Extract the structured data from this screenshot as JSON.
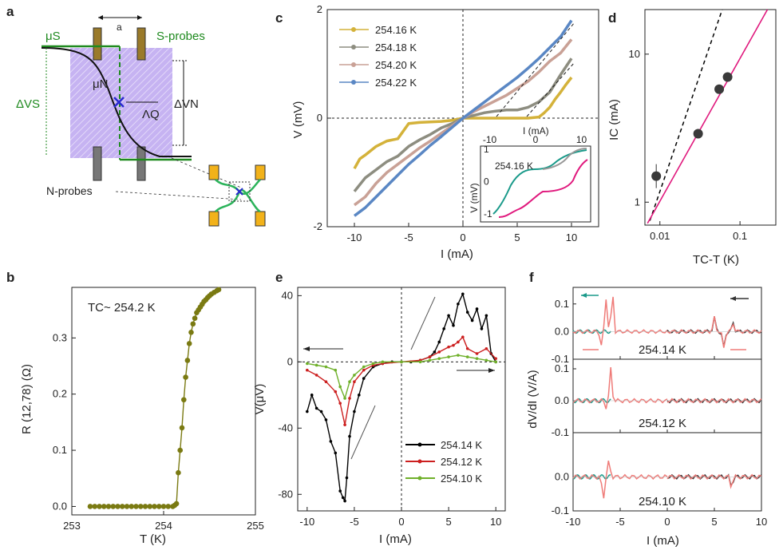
{
  "panels": {
    "a": {
      "label": "a",
      "a_label": "a",
      "s_probes": "S-probes",
      "n_probes": "N-probes",
      "mu_s": "μS",
      "mu_n": "μN",
      "dvs": "ΔVS",
      "dvn": "ΔVN",
      "lambda": "ΛQ",
      "colors": {
        "stripe": "#a98be8",
        "green": "#1f8a1f",
        "probe": "#9a7a2a",
        "nprobe": "#777777",
        "orange": "#f2b21a",
        "cross": "#2a2ad0"
      }
    },
    "b": {
      "label": "b",
      "annotation": "TC~ 254.2 K"
    },
    "c": {
      "label": "c"
    },
    "d": {
      "label": "d"
    },
    "e": {
      "label": "e"
    },
    "f": {
      "label": "f"
    }
  },
  "chart_data": [
    {
      "id": "b",
      "type": "line",
      "title": "",
      "xlabel": "T (K)",
      "ylabel": "R (12,78) (Ω)",
      "xlim": [
        253,
        255
      ],
      "ylim": [
        -0.015,
        0.39
      ],
      "xticks": [
        253,
        254,
        255
      ],
      "yticks": [
        0.0,
        0.1,
        0.2,
        0.3
      ],
      "xtick_labels": [
        "253",
        "254",
        "255"
      ],
      "ytick_labels": [
        "0.0",
        "0.1",
        "0.2",
        "0.3"
      ],
      "color": "#7a7a12",
      "x": [
        253.2,
        253.25,
        253.3,
        253.35,
        253.4,
        253.45,
        253.5,
        253.55,
        253.6,
        253.65,
        253.7,
        253.75,
        253.8,
        253.85,
        253.9,
        253.95,
        254.0,
        254.05,
        254.1,
        254.12,
        254.14,
        254.16,
        254.18,
        254.2,
        254.22,
        254.24,
        254.26,
        254.28,
        254.3,
        254.32,
        254.34,
        254.36,
        254.38,
        254.4,
        254.42,
        254.44,
        254.46,
        254.48,
        254.5,
        254.52,
        254.55,
        254.58,
        254.6
      ],
      "y": [
        0,
        0,
        0,
        0,
        0,
        0,
        0,
        0,
        0,
        0,
        0,
        0,
        0,
        0,
        0,
        0,
        0,
        0,
        0,
        0.002,
        0.005,
        0.06,
        0.1,
        0.14,
        0.19,
        0.23,
        0.26,
        0.29,
        0.31,
        0.325,
        0.335,
        0.345,
        0.35,
        0.355,
        0.36,
        0.365,
        0.368,
        0.372,
        0.375,
        0.378,
        0.381,
        0.384,
        0.386
      ]
    },
    {
      "id": "c",
      "type": "line",
      "xlabel": "I (mA)",
      "ylabel": "V (mV)",
      "xlim": [
        -12.5,
        12.5
      ],
      "ylim": [
        -2,
        2
      ],
      "xticks": [
        -10,
        -5,
        0,
        5,
        10
      ],
      "yticks": [
        -2,
        0,
        2
      ],
      "xtick_labels": [
        "-10",
        "-5",
        "0",
        "5",
        "10"
      ],
      "ytick_labels": [
        "-2",
        "0",
        "2"
      ],
      "series": [
        {
          "name": "254.16 K",
          "color": "#d4b23a",
          "x": [
            -10,
            -9.5,
            -9,
            -8,
            -7,
            -6,
            -5,
            -4,
            -3,
            -2,
            -1,
            0,
            1,
            2,
            3,
            4,
            5,
            6,
            7,
            7.5,
            8,
            8.5,
            9,
            9.5,
            10
          ],
          "y": [
            -0.93,
            -0.75,
            -0.68,
            -0.52,
            -0.42,
            -0.38,
            -0.1,
            -0.08,
            -0.07,
            -0.06,
            -0.04,
            0,
            0,
            0,
            0,
            0,
            0,
            0,
            0.02,
            0.1,
            0.2,
            0.35,
            0.48,
            0.62,
            0.75
          ]
        },
        {
          "name": "254.18 K",
          "color": "#8d8d80",
          "x": [
            -10,
            -9,
            -8,
            -7,
            -6,
            -5,
            -4,
            -3,
            -2,
            -1,
            0,
            1,
            2,
            3,
            4,
            5,
            6,
            7,
            8,
            9,
            9.5,
            10
          ],
          "y": [
            -1.35,
            -1.1,
            -0.95,
            -0.8,
            -0.7,
            -0.52,
            -0.4,
            -0.3,
            -0.18,
            -0.1,
            0,
            0.05,
            0.1,
            0.13,
            0.15,
            0.15,
            0.2,
            0.3,
            0.48,
            0.8,
            0.95,
            1.1
          ]
        },
        {
          "name": "254.20 K",
          "color": "#c9a196",
          "x": [
            -10,
            -9,
            -8,
            -7,
            -6,
            -5,
            -4,
            -3,
            -2,
            -1,
            0,
            1,
            2,
            3,
            4,
            5,
            6,
            7,
            8,
            9,
            10
          ],
          "y": [
            -1.6,
            -1.45,
            -1.2,
            -1.0,
            -0.85,
            -0.7,
            -0.55,
            -0.42,
            -0.28,
            -0.14,
            0,
            0.12,
            0.22,
            0.32,
            0.42,
            0.55,
            0.68,
            0.85,
            1.05,
            1.2,
            1.45
          ]
        },
        {
          "name": "254.22 K",
          "color": "#5a87c4",
          "x": [
            -10,
            -9,
            -8,
            -7,
            -6,
            -5,
            -4,
            -3,
            -2,
            -1,
            0,
            1,
            2,
            3,
            4,
            5,
            6,
            7,
            8,
            9,
            10
          ],
          "y": [
            -1.8,
            -1.65,
            -1.45,
            -1.25,
            -1.05,
            -0.85,
            -0.68,
            -0.5,
            -0.34,
            -0.17,
            0,
            0.15,
            0.3,
            0.45,
            0.6,
            0.75,
            0.92,
            1.1,
            1.3,
            1.5,
            1.8
          ]
        }
      ],
      "inset": {
        "title": "254.16 K",
        "xlabel": "I (mA)",
        "ylabel": "V (mV)",
        "xlim": [
          -12,
          12
        ],
        "ylim": [
          -1.25,
          1.1
        ],
        "xticks": [
          -10,
          0,
          10
        ],
        "yticks": [
          -1,
          0,
          1
        ],
        "xtick_labels": [
          "-10",
          "0",
          "10"
        ],
        "ytick_labels": [
          "-1",
          "0",
          "1"
        ]
      }
    },
    {
      "id": "d",
      "type": "scatter",
      "xlabel": "TC-T (K)",
      "ylabel": "IC (mA)",
      "xscale": "log",
      "yscale": "log",
      "xlim": [
        0.0065,
        0.28
      ],
      "ylim": [
        0.7,
        20
      ],
      "xticks": [
        0.01,
        0.1
      ],
      "yticks": [
        1,
        10
      ],
      "xtick_labels": [
        "0.01",
        "0.1"
      ],
      "ytick_labels": [
        "1",
        "10"
      ],
      "points": {
        "x": [
          0.009,
          0.03,
          0.055,
          0.07
        ],
        "y": [
          1.5,
          2.9,
          5.8,
          7.0
        ]
      },
      "fit_line": {
        "color": "#e0197d",
        "x": [
          0.007,
          0.22
        ],
        "y": [
          0.72,
          20
        ]
      },
      "dashed_line": {
        "color": "#000000",
        "x": [
          0.0075,
          0.06
        ],
        "y": [
          0.75,
          20
        ]
      }
    },
    {
      "id": "e",
      "type": "line",
      "xlabel": "I (mA)",
      "ylabel": "V(μV)",
      "xlim": [
        -11,
        11
      ],
      "ylim": [
        -90,
        45
      ],
      "xticks": [
        -10,
        -5,
        0,
        5,
        10
      ],
      "yticks": [
        -80,
        -40,
        0,
        40
      ],
      "xtick_labels": [
        "-10",
        "-5",
        "0",
        "5",
        "10"
      ],
      "ytick_labels": [
        "-80",
        "-40",
        "0",
        "40"
      ],
      "series": [
        {
          "name": "254.14 K",
          "color": "#000000",
          "x": [
            -10,
            -9.5,
            -9,
            -8.5,
            -8,
            -7.5,
            -7,
            -6.5,
            -6.2,
            -6,
            -5.8,
            -5.5,
            -5,
            -4.5,
            -4,
            -3,
            -2,
            -1,
            0,
            1,
            2,
            3,
            3.5,
            4,
            4.5,
            5,
            5.5,
            6,
            6.5,
            7,
            7.5,
            8,
            8.5,
            9,
            9.5,
            10
          ],
          "y": [
            -30,
            -20,
            -28,
            -30,
            -35,
            -48,
            -55,
            -78,
            -82,
            -84,
            -70,
            -45,
            -30,
            -20,
            -10,
            -3,
            -1,
            0,
            0,
            0,
            1,
            3,
            6,
            12,
            20,
            28,
            22,
            35,
            41,
            30,
            25,
            32,
            20,
            28,
            5,
            0
          ]
        },
        {
          "name": "254.12 K",
          "color": "#cc1f1f",
          "x": [
            -10,
            -9,
            -8,
            -7,
            -6.5,
            -6,
            -5.5,
            -5,
            -4,
            -3,
            -2,
            0,
            2,
            3,
            4,
            5,
            5.5,
            6,
            6.5,
            7,
            8,
            9,
            10
          ],
          "y": [
            -5,
            -8,
            -12,
            -18,
            -25,
            -38,
            -22,
            -12,
            -5,
            -2,
            -1,
            0,
            1,
            3,
            6,
            9,
            10,
            12,
            15,
            8,
            5,
            8,
            2
          ]
        },
        {
          "name": "254.10 K",
          "color": "#6fb02a",
          "x": [
            -10,
            -9,
            -8,
            -7,
            -6.5,
            -6,
            -5.5,
            -5,
            -4,
            -3,
            -2,
            0,
            2,
            3,
            4,
            5,
            6,
            7,
            8,
            9,
            10
          ],
          "y": [
            -1,
            -2,
            -3,
            -5,
            -15,
            -22,
            -12,
            -8,
            -3,
            -1,
            0,
            0,
            0,
            1,
            2,
            3,
            4,
            3,
            2,
            1,
            0
          ]
        }
      ]
    },
    {
      "id": "f",
      "type": "line",
      "xlabel": "I (mA)",
      "ylabel": "dV/dI (V/A)",
      "xlim": [
        -10,
        10
      ],
      "xticks": [
        -10,
        -5,
        0,
        5,
        10
      ],
      "xtick_labels": [
        "-10",
        "-5",
        "0",
        "5",
        "10"
      ],
      "subpanels": [
        {
          "label": "254.14 K",
          "ylim": [
            -0.1,
            0.16
          ],
          "yticks": [
            0.1,
            0.0,
            -0.1
          ],
          "ytick_labels": [
            "0.1",
            "0.0",
            "-0.1"
          ]
        },
        {
          "label": "254.12 K",
          "ylim": [
            -0.1,
            0.13
          ],
          "yticks": [
            0.1,
            0.0,
            -0.1
          ],
          "ytick_labels": [
            "0.1",
            "0.0",
            "-0.1"
          ]
        },
        {
          "label": "254.10 K",
          "ylim": [
            -0.1,
            0.13
          ],
          "yticks": [
            0.0,
            -0.1
          ],
          "ytick_labels": [
            "0.0",
            "-0.1"
          ]
        }
      ],
      "colors": {
        "teal": "#1a9a8a",
        "salmon": "#ef7b78",
        "dark": "#333333"
      }
    }
  ]
}
